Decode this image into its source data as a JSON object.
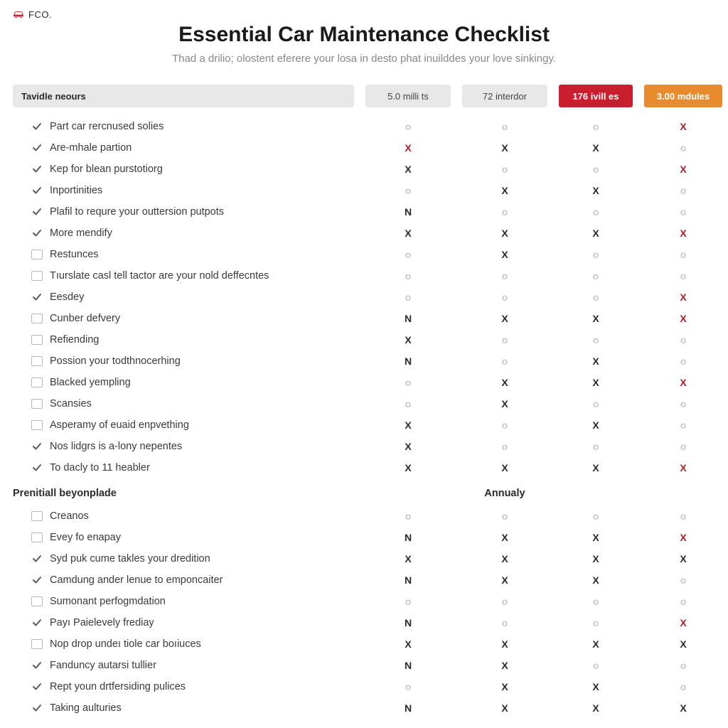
{
  "brand": {
    "text": "FCO.",
    "icon_color": "#c81e2e"
  },
  "title": "Essential Car Maintenance Checklist",
  "subtitle": "Thad a drilio; olostent eferere your losa in desto phat inuilddes your love sinkingy.",
  "columns": {
    "first_header": "Tavidle neours",
    "headers": [
      {
        "label": "5.0 milli ts",
        "style": "gray"
      },
      {
        "label": "72 interdor",
        "style": "gray"
      },
      {
        "label": "176 ivill es",
        "style": "red"
      },
      {
        "label": "3.00 mdules",
        "style": "orange"
      }
    ]
  },
  "section2": {
    "label": "Prenitiall beyonplade",
    "annual_label": "Annualy"
  },
  "rows1": [
    {
      "mark": "check",
      "label": "Part car rercnused solies",
      "cells": [
        "o",
        "o",
        "o",
        "x-red"
      ]
    },
    {
      "mark": "check",
      "label": "Are-mhale partion",
      "cells": [
        "x-red",
        "x-dark",
        "x-dark",
        "o"
      ]
    },
    {
      "mark": "check",
      "label": "Kep for blean purstotiorg",
      "cells": [
        "x-dark",
        "o",
        "o",
        "x-red"
      ]
    },
    {
      "mark": "check",
      "label": "Inportinities",
      "cells": [
        "o",
        "x-dark",
        "x-dark",
        "o"
      ]
    },
    {
      "mark": "check",
      "label": "Plafil to requre your outtersion putpots",
      "cells": [
        "n-dark",
        "o",
        "o",
        "o"
      ]
    },
    {
      "mark": "check",
      "label": "More mendify",
      "cells": [
        "x-dark",
        "x-dark",
        "x-dark",
        "x-red"
      ]
    },
    {
      "mark": "box",
      "label": "Restunces",
      "cells": [
        "o",
        "x-dark",
        "o",
        "o"
      ]
    },
    {
      "mark": "box",
      "label": "Tıurslate casl tell tactor are your nold deffecntes",
      "cells": [
        "o",
        "o",
        "o",
        "o"
      ]
    },
    {
      "mark": "check",
      "label": "Eesdey",
      "cells": [
        "o",
        "o",
        "o",
        "x-red"
      ]
    },
    {
      "mark": "box",
      "label": "Cunber defvery",
      "cells": [
        "n-dark",
        "x-dark",
        "x-dark",
        "x-red"
      ]
    },
    {
      "mark": "box",
      "label": "Refiending",
      "cells": [
        "x-dark",
        "o",
        "o",
        "o"
      ]
    },
    {
      "mark": "box",
      "label": "Possion your todthnocerhing",
      "cells": [
        "n-dark",
        "o",
        "x-dark",
        "o"
      ]
    },
    {
      "mark": "box",
      "label": "Blacked yempling",
      "cells": [
        "o",
        "x-dark",
        "x-dark",
        "x-red"
      ]
    },
    {
      "mark": "box",
      "label": "Scansies",
      "cells": [
        "o",
        "x-dark",
        "o",
        "o"
      ]
    },
    {
      "mark": "box",
      "label": "Asperamy of euaid enpvething",
      "cells": [
        "x-dark",
        "o",
        "x-dark",
        "o"
      ]
    },
    {
      "mark": "check",
      "label": "Nos lidgrs is a-lony nepentes",
      "cells": [
        "x-dark",
        "o",
        "o",
        "o"
      ]
    },
    {
      "mark": "check",
      "label": "To dacly to 11 heabler",
      "cells": [
        "x-dark",
        "x-dark",
        "x-dark",
        "x-red"
      ]
    }
  ],
  "rows2": [
    {
      "mark": "box",
      "label": "Creanos",
      "cells": [
        "o",
        "o",
        "o",
        "o"
      ]
    },
    {
      "mark": "box",
      "label": "Evey fo enapay",
      "cells": [
        "n-dark",
        "x-dark",
        "x-dark",
        "x-red"
      ]
    },
    {
      "mark": "check",
      "label": "Syd puk cume takles your dredition",
      "cells": [
        "x-dark",
        "x-dark",
        "x-dark",
        "x-dark"
      ]
    },
    {
      "mark": "check",
      "label": "Camdung ander lenue to emponcaiter",
      "cells": [
        "n-dark",
        "x-dark",
        "x-dark",
        "o"
      ]
    },
    {
      "mark": "box",
      "label": "Sumonant perfogmdation",
      "cells": [
        "o",
        "o",
        "o",
        "o"
      ]
    },
    {
      "mark": "check",
      "label": "Payı Paielevely frediay",
      "cells": [
        "n-dark",
        "o",
        "o",
        "x-red"
      ]
    },
    {
      "mark": "box",
      "label": "Nop drop undeı tiole car boıiuces",
      "cells": [
        "x-dark",
        "x-dark",
        "x-dark",
        "x-dark"
      ]
    },
    {
      "mark": "check",
      "label": "Fanduncy autarsi tullier",
      "cells": [
        "n-dark",
        "x-dark",
        "o",
        "o"
      ]
    },
    {
      "mark": "check",
      "label": "Rept youn drtfersiding pulices",
      "cells": [
        "o",
        "x-dark",
        "x-dark",
        "o"
      ]
    },
    {
      "mark": "check",
      "label": "Taking aulturies",
      "cells": [
        "n-dark",
        "x-dark",
        "x-dark",
        "x-dark"
      ]
    }
  ],
  "glyph_map": {
    "o": "o",
    "x-dark": "X",
    "x-red": "X",
    "n-dark": "N"
  }
}
